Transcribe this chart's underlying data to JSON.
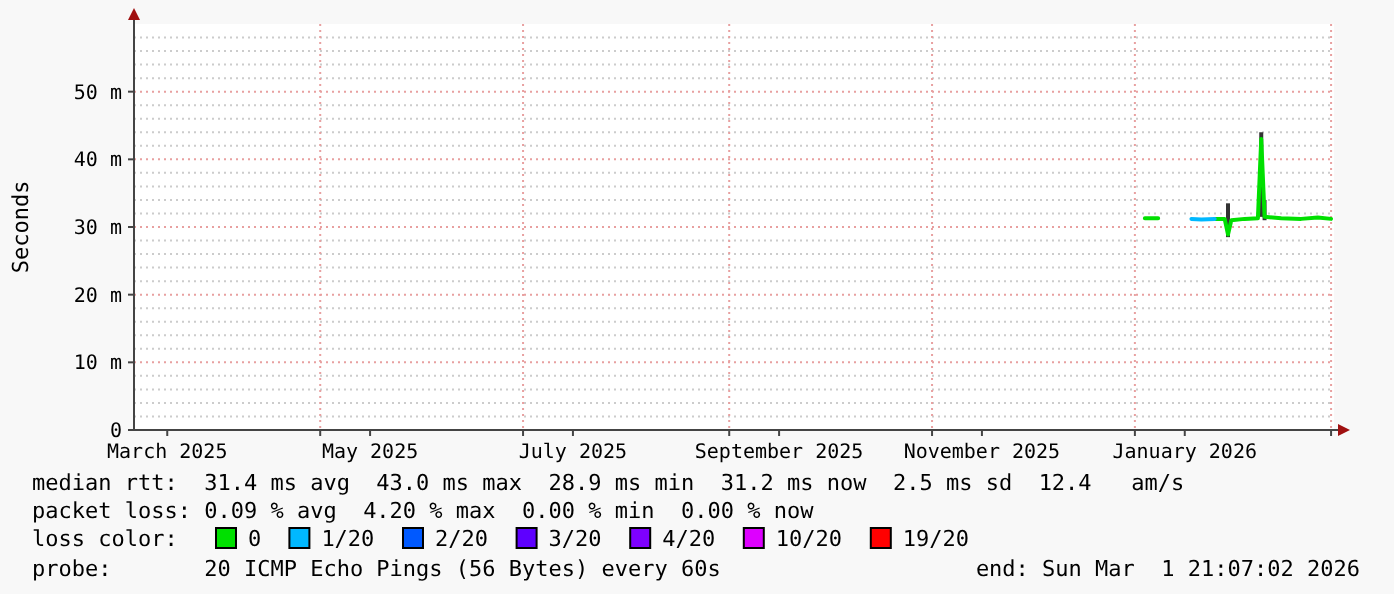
{
  "chart_data": {
    "type": "line",
    "ylabel": "Seconds",
    "xlim": [
      "2025-03-06",
      "2026-03-01T21:07"
    ],
    "xticks": [
      {
        "value": "2025-03-16",
        "label": "March 2025"
      },
      {
        "value": "2025-05-01",
        "label": null
      },
      {
        "value": "2025-05-16",
        "label": "May 2025"
      },
      {
        "value": "2025-07-01",
        "label": null
      },
      {
        "value": "2025-07-16",
        "label": "July 2025"
      },
      {
        "value": "2025-09-01",
        "label": null
      },
      {
        "value": "2025-09-16",
        "label": "September 2025"
      },
      {
        "value": "2025-11-01",
        "label": null
      },
      {
        "value": "2025-11-16",
        "label": "November 2025"
      },
      {
        "value": "2026-01-01",
        "label": null
      },
      {
        "value": "2026-01-16",
        "label": "January 2026"
      },
      {
        "value": "2026-03-01",
        "label": null
      }
    ],
    "ylim": [
      0,
      60
    ],
    "yticks": [
      {
        "value": 0,
        "label": "0"
      },
      {
        "value": 2,
        "label": null
      },
      {
        "value": 4,
        "label": null
      },
      {
        "value": 6,
        "label": null
      },
      {
        "value": 8,
        "label": null
      },
      {
        "value": 10,
        "label": "10 m"
      },
      {
        "value": 12,
        "label": null
      },
      {
        "value": 14,
        "label": null
      },
      {
        "value": 16,
        "label": null
      },
      {
        "value": 18,
        "label": null
      },
      {
        "value": 20,
        "label": "20 m"
      },
      {
        "value": 22,
        "label": null
      },
      {
        "value": 24,
        "label": null
      },
      {
        "value": 26,
        "label": null
      },
      {
        "value": 28,
        "label": null
      },
      {
        "value": 30,
        "label": "30 m"
      },
      {
        "value": 32,
        "label": null
      },
      {
        "value": 34,
        "label": null
      },
      {
        "value": 36,
        "label": null
      },
      {
        "value": 38,
        "label": null
      },
      {
        "value": 40,
        "label": "40 m"
      },
      {
        "value": 42,
        "label": null
      },
      {
        "value": 44,
        "label": null
      },
      {
        "value": 46,
        "label": null
      },
      {
        "value": 48,
        "label": null
      },
      {
        "value": 50,
        "label": "50 m"
      },
      {
        "value": 52,
        "label": null
      },
      {
        "value": 54,
        "label": null
      },
      {
        "value": 56,
        "label": null
      },
      {
        "value": 58,
        "label": null
      }
    ],
    "grid": true,
    "legend": "bottom",
    "legend_title": "loss color:",
    "line_style": "solid",
    "marker": "none",
    "series": [
      {
        "name": "0",
        "color": "#00e000",
        "x": [
          "2026-01-04",
          "2026-01-08",
          "2026-01-12",
          "2026-01-25",
          "2026-01-28",
          "2026-01-29",
          "2026-01-30",
          "2026-02-03",
          "2026-02-07",
          "2026-02-08",
          "2026-02-09",
          "2026-02-14",
          "2026-02-20",
          "2026-02-25",
          "2026-03-01"
        ],
        "values": [
          31.3,
          31.3,
          null,
          31.2,
          31.2,
          28.9,
          31.0,
          31.2,
          31.3,
          43.0,
          31.5,
          31.3,
          31.2,
          31.4,
          31.2
        ],
        "errors": [
          null,
          null,
          null,
          null,
          null,
          [
            28.5,
            33.5
          ],
          null,
          null,
          null,
          [
            31.5,
            44.0
          ],
          [
            31.0,
            34.0
          ],
          null,
          null,
          null,
          null
        ]
      },
      {
        "name": "1/20",
        "color": "#00b8ff",
        "x": [
          "2026-01-18",
          "2026-01-21",
          "2026-01-25"
        ],
        "values": [
          31.2,
          31.1,
          31.2
        ]
      },
      {
        "name": "2/20",
        "color": "#0059ff"
      },
      {
        "name": "3/20",
        "color": "#5e00ff"
      },
      {
        "name": "4/20",
        "color": "#7e00ff"
      },
      {
        "name": "10/20",
        "color": "#dd00ff"
      },
      {
        "name": "19/20",
        "color": "#ff0000"
      }
    ],
    "annotations": [
      "median rtt:  31.4 ms avg  43.0 ms max  28.9 ms min  31.2 ms now  2.5 ms sd  12.4   am/s",
      "packet loss: 0.09 % avg  4.20 % max  0.00 % min  0.00 % now",
      "probe:       20 ICMP Echo Pings (56 Bytes) every 60s",
      "end: Sun Mar  1 21:07:02 2026"
    ]
  }
}
